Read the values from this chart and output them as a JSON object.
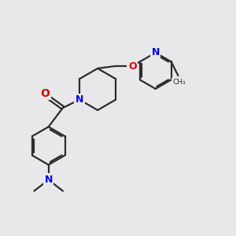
{
  "background_color": "#e8e8ea",
  "bond_color": "#2d2d2d",
  "atom_colors": {
    "N": "#0000ee",
    "O": "#dd0000",
    "C": "#2d2d2d"
  },
  "figsize": [
    3.0,
    3.0
  ],
  "dpi": 100
}
